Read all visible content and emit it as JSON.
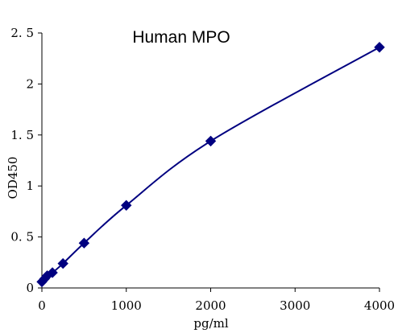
{
  "chart_data": {
    "type": "scatter",
    "title": "Human MPO",
    "xlabel": "pg/ml",
    "ylabel": "OD450",
    "xlim": [
      0,
      4000
    ],
    "ylim": [
      0,
      2.5
    ],
    "x_ticks": [
      0,
      1000,
      2000,
      3000,
      4000
    ],
    "x_tick_labels": [
      "0",
      "1000",
      "2000",
      "3000",
      "4000"
    ],
    "y_ticks": [
      0,
      0.5,
      1,
      1.5,
      2,
      2.5
    ],
    "y_tick_labels": [
      "0",
      "0. 5",
      "1",
      "1. 5",
      "2",
      "2. 5"
    ],
    "grid": false,
    "legend": "none",
    "series": [
      {
        "marker": "diamond",
        "color": "#000080",
        "line": "smooth",
        "x": [
          0,
          31.25,
          62.5,
          125,
          250,
          500,
          1000,
          2000,
          4000
        ],
        "y": [
          0.06,
          0.09,
          0.12,
          0.15,
          0.24,
          0.44,
          0.81,
          1.44,
          2.36
        ]
      }
    ]
  }
}
